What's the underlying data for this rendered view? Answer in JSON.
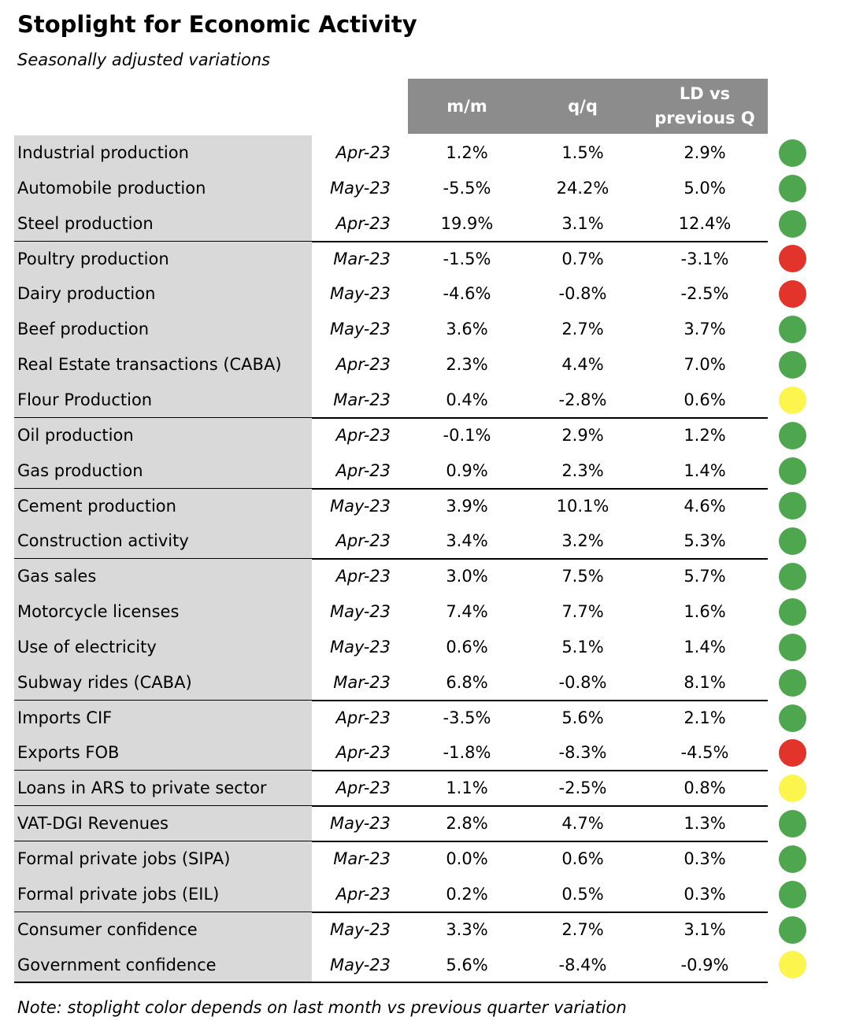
{
  "header": {
    "title": "Stoplight for Economic Activity",
    "subtitle": "Seasonally adjusted variations"
  },
  "table": {
    "columns": [
      "m/m",
      "q/q",
      "LD vs previous Q"
    ],
    "groups": [
      {
        "rows": [
          {
            "name": "Industrial production",
            "date": "Apr-23",
            "mm": "1.2%",
            "qq": "1.5%",
            "ld": "2.9%",
            "light": "#4ea64f"
          },
          {
            "name": "Automobile production",
            "date": "May-23",
            "mm": "-5.5%",
            "qq": "24.2%",
            "ld": "5.0%",
            "light": "#4ea64f"
          },
          {
            "name": "Steel production",
            "date": "Apr-23",
            "mm": "19.9%",
            "qq": "3.1%",
            "ld": "12.4%",
            "light": "#4ea64f"
          }
        ]
      },
      {
        "rows": [
          {
            "name": "Poultry production",
            "date": "Mar-23",
            "mm": "-1.5%",
            "qq": "0.7%",
            "ld": "-3.1%",
            "light": "#e2342a"
          },
          {
            "name": "Dairy production",
            "date": "May-23",
            "mm": "-4.6%",
            "qq": "-0.8%",
            "ld": "-2.5%",
            "light": "#e2342a"
          },
          {
            "name": "Beef production",
            "date": "May-23",
            "mm": "3.6%",
            "qq": "2.7%",
            "ld": "3.7%",
            "light": "#4ea64f"
          },
          {
            "name": "Real Estate transactions (CABA)",
            "date": "Apr-23",
            "mm": "2.3%",
            "qq": "4.4%",
            "ld": "7.0%",
            "light": "#4ea64f"
          },
          {
            "name": "Flour Production",
            "date": "Mar-23",
            "mm": "0.4%",
            "qq": "-2.8%",
            "ld": "0.6%",
            "light": "#fbf54d"
          }
        ]
      },
      {
        "rows": [
          {
            "name": "Oil production",
            "date": "Apr-23",
            "mm": "-0.1%",
            "qq": "2.9%",
            "ld": "1.2%",
            "light": "#4ea64f"
          },
          {
            "name": "Gas production",
            "date": "Apr-23",
            "mm": "0.9%",
            "qq": "2.3%",
            "ld": "1.4%",
            "light": "#4ea64f"
          }
        ]
      },
      {
        "rows": [
          {
            "name": "Cement production",
            "date": "May-23",
            "mm": "3.9%",
            "qq": "10.1%",
            "ld": "4.6%",
            "light": "#4ea64f"
          },
          {
            "name": "Construction activity",
            "date": "Apr-23",
            "mm": "3.4%",
            "qq": "3.2%",
            "ld": "5.3%",
            "light": "#4ea64f"
          }
        ]
      },
      {
        "rows": [
          {
            "name": "Gas sales",
            "date": "Apr-23",
            "mm": "3.0%",
            "qq": "7.5%",
            "ld": "5.7%",
            "light": "#4ea64f"
          },
          {
            "name": "Motorcycle licenses",
            "date": "May-23",
            "mm": "7.4%",
            "qq": "7.7%",
            "ld": "1.6%",
            "light": "#4ea64f"
          },
          {
            "name": "Use of electricity",
            "date": "May-23",
            "mm": "0.6%",
            "qq": "5.1%",
            "ld": "1.4%",
            "light": "#4ea64f"
          },
          {
            "name": "Subway rides (CABA)",
            "date": "Mar-23",
            "mm": "6.8%",
            "qq": "-0.8%",
            "ld": "8.1%",
            "light": "#4ea64f"
          }
        ]
      },
      {
        "rows": [
          {
            "name": "Imports CIF",
            "date": "Apr-23",
            "mm": "-3.5%",
            "qq": "5.6%",
            "ld": "2.1%",
            "light": "#4ea64f"
          },
          {
            "name": "Exports FOB",
            "date": "Apr-23",
            "mm": "-1.8%",
            "qq": "-8.3%",
            "ld": "-4.5%",
            "light": "#e2342a"
          }
        ]
      },
      {
        "rows": [
          {
            "name": "Loans in ARS to private sector",
            "date": "Apr-23",
            "mm": "1.1%",
            "qq": "-2.5%",
            "ld": "0.8%",
            "light": "#fbf54d"
          }
        ]
      },
      {
        "rows": [
          {
            "name": "VAT-DGI Revenues",
            "date": "May-23",
            "mm": "2.8%",
            "qq": "4.7%",
            "ld": "1.3%",
            "light": "#4ea64f"
          }
        ]
      },
      {
        "rows": [
          {
            "name": "Formal private jobs (SIPA)",
            "date": "Mar-23",
            "mm": "0.0%",
            "qq": "0.6%",
            "ld": "0.3%",
            "light": "#4ea64f"
          },
          {
            "name": "Formal private jobs (EIL)",
            "date": "Apr-23",
            "mm": "0.2%",
            "qq": "0.5%",
            "ld": "0.3%",
            "light": "#4ea64f"
          }
        ]
      },
      {
        "rows": [
          {
            "name": "Consumer confidence",
            "date": "May-23",
            "mm": "3.3%",
            "qq": "2.7%",
            "ld": "3.1%",
            "light": "#4ea64f"
          },
          {
            "name": "Government confidence",
            "date": "May-23",
            "mm": "5.6%",
            "qq": "-8.4%",
            "ld": "-0.9%",
            "light": "#fbf54d"
          }
        ]
      }
    ]
  },
  "footer": {
    "note": "Note: stoplight color depends on last month vs previous quarter variation"
  }
}
